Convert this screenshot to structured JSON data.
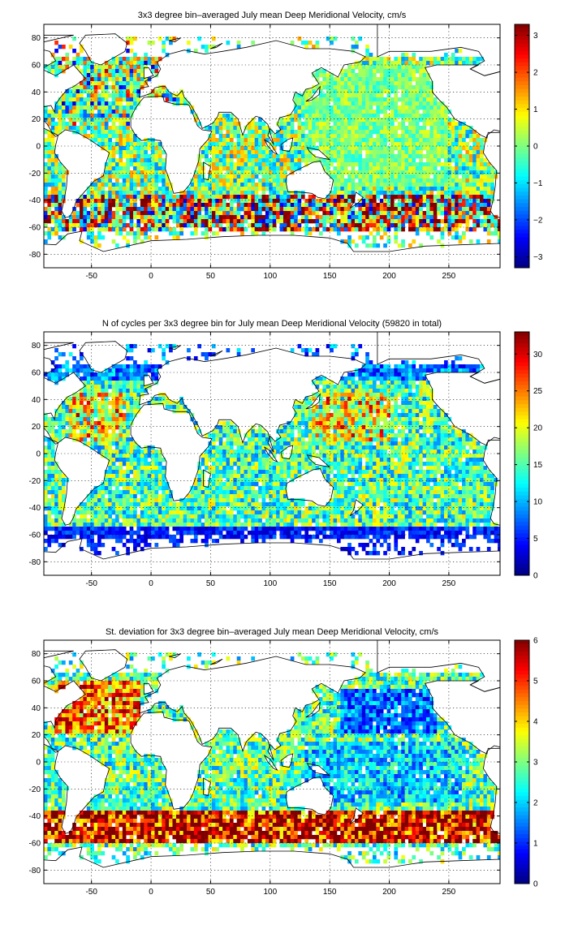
{
  "chart_data": [
    {
      "type": "heatmap",
      "title": "3x3 degree bin–averaged July mean Deep Meridional Velocity, cm/s",
      "x_ticks": [
        -50,
        0,
        50,
        100,
        150,
        200,
        250
      ],
      "y_ticks": [
        80,
        60,
        40,
        20,
        0,
        -20,
        -40,
        -60,
        -80
      ],
      "xlim": [
        -90,
        293
      ],
      "ylim": [
        -90,
        90
      ],
      "grid": true,
      "bin_size_deg": 3,
      "colormap": "jet",
      "color_limits": [
        -3.3,
        3.3
      ],
      "colorbar_ticks": [
        3,
        2,
        1,
        0,
        -1,
        -2,
        -3
      ],
      "colorbar_tick_labels": [
        "3",
        "2",
        "1",
        "0",
        "−1",
        "−2",
        "−3"
      ],
      "field": "velocity"
    },
    {
      "type": "heatmap",
      "title": "N of cycles per 3x3 degree bin for July mean Deep Meridional Velocity (59820 in total)",
      "x_ticks": [
        -50,
        0,
        50,
        100,
        150,
        200,
        250
      ],
      "y_ticks": [
        80,
        60,
        40,
        20,
        0,
        -20,
        -40,
        -60,
        -80
      ],
      "xlim": [
        -90,
        293
      ],
      "ylim": [
        -90,
        90
      ],
      "grid": true,
      "bin_size_deg": 3,
      "colormap": "jet",
      "color_limits": [
        0,
        33
      ],
      "colorbar_ticks": [
        30,
        25,
        20,
        15,
        10,
        5,
        0
      ],
      "colorbar_tick_labels": [
        "30",
        "25",
        "20",
        "15",
        "10",
        "5",
        "0"
      ],
      "field": "count"
    },
    {
      "type": "heatmap",
      "title": "St. deviation for 3x3 degree bin–averaged July mean Deep Meridional Velocity, cm/s",
      "x_ticks": [
        -50,
        0,
        50,
        100,
        150,
        200,
        250
      ],
      "y_ticks": [
        80,
        60,
        40,
        20,
        0,
        -20,
        -40,
        -60,
        -80
      ],
      "xlim": [
        -90,
        293
      ],
      "ylim": [
        -90,
        90
      ],
      "grid": true,
      "bin_size_deg": 3,
      "colormap": "jet",
      "color_limits": [
        0,
        6
      ],
      "colorbar_ticks": [
        6,
        5,
        4,
        3,
        2,
        1,
        0
      ],
      "colorbar_tick_labels": [
        "6",
        "5",
        "4",
        "3",
        "2",
        "1",
        "0"
      ],
      "field": "stddev"
    }
  ]
}
